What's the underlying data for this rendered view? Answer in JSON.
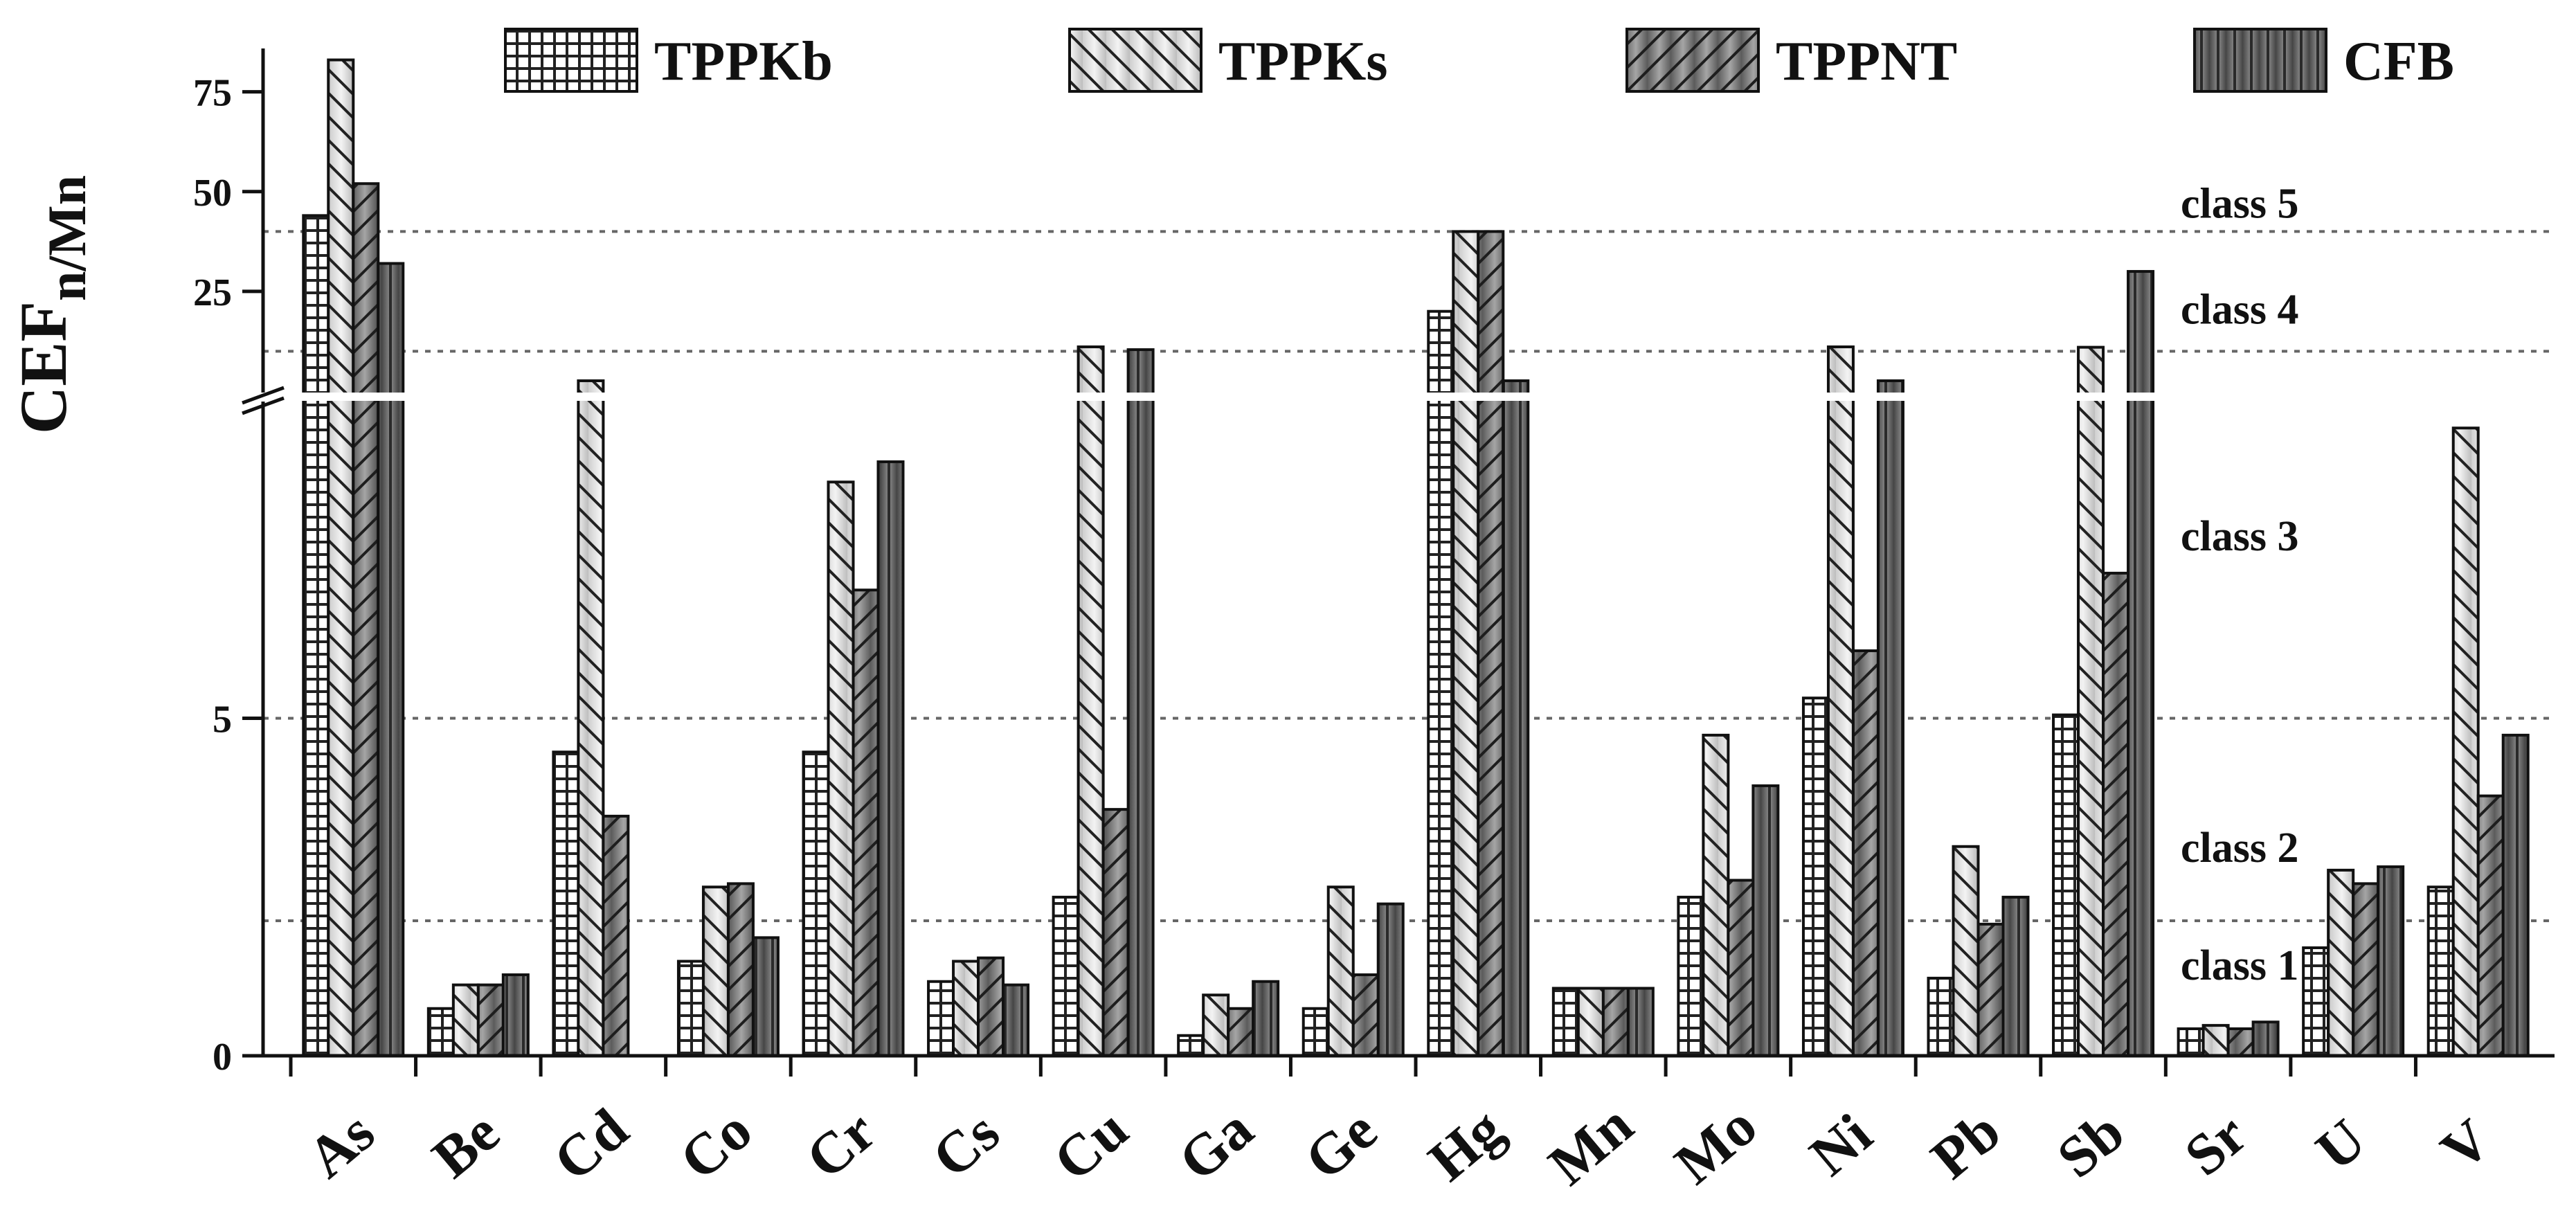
{
  "chart_data": {
    "type": "bar",
    "ylabel_main": "CEF",
    "ylabel_sub": "n/Mn",
    "categories": [
      "As",
      "Be",
      "Cd",
      "Co",
      "Cr",
      "Cs",
      "Cu",
      "Ga",
      "Ge",
      "Hg",
      "Mn",
      "Mo",
      "Ni",
      "Pb",
      "Sb",
      "Sr",
      "U",
      "V"
    ],
    "series": [
      {
        "name": "TPPKb",
        "values": [
          44,
          0.7,
          4.5,
          1.4,
          4.5,
          1.1,
          2.35,
          0.3,
          0.7,
          20,
          1.0,
          2.35,
          5.3,
          1.15,
          5.05,
          0.4,
          1.6,
          2.5
        ]
      },
      {
        "name": "TPPKs",
        "values": [
          83,
          1.05,
          10,
          2.5,
          8.5,
          1.4,
          11.1,
          0.9,
          2.5,
          40,
          1.0,
          4.75,
          11.1,
          3.1,
          11.0,
          0.45,
          2.75,
          9.3
        ]
      },
      {
        "name": "TPPNT",
        "values": [
          52,
          1.05,
          3.55,
          2.55,
          6.9,
          1.45,
          3.65,
          0.7,
          1.2,
          40,
          1.0,
          2.6,
          6.0,
          1.95,
          7.15,
          0.4,
          2.55,
          3.85
        ]
      },
      {
        "name": "CFB",
        "values": [
          32,
          1.2,
          null,
          1.75,
          8.8,
          1.05,
          10.4,
          1.1,
          2.25,
          10,
          1.0,
          4.0,
          10.0,
          2.35,
          30,
          0.5,
          2.8,
          4.75
        ]
      }
    ],
    "lower_axis": {
      "ylim": [
        0,
        10
      ],
      "ticks": [
        {
          "value": 0,
          "label": "0"
        },
        {
          "value": 5,
          "label": "5"
        }
      ]
    },
    "upper_axis": {
      "ylim": [
        0,
        85
      ],
      "ticks": [
        {
          "value": 25,
          "label": "25"
        },
        {
          "value": 50,
          "label": "50"
        },
        {
          "value": 75,
          "label": "75"
        }
      ]
    },
    "axis_break": {
      "lower_top": 10,
      "upper_bottom": 0
    },
    "class_lines": [
      {
        "value": 2,
        "axis": "lower",
        "label": "class 1",
        "label_above": "class 2"
      },
      {
        "value": 5,
        "axis": "lower",
        "label": "class 3"
      },
      {
        "value": 10,
        "axis": "upper",
        "label": "class 4"
      },
      {
        "value": 40,
        "axis": "upper",
        "label": "class 5"
      }
    ],
    "class_labels": [
      "class 5",
      "class 4",
      "class 3",
      "class 2",
      "class 1"
    ],
    "legend": {
      "placement": "top",
      "entries": [
        "TPPKb",
        "TPPKs",
        "TPPNT",
        "CFB"
      ]
    }
  }
}
